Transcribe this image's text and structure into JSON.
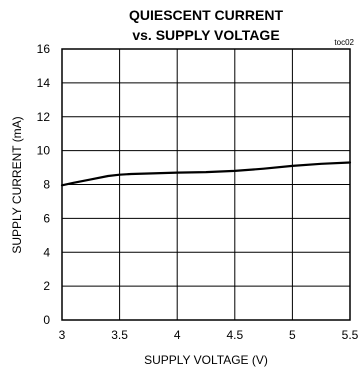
{
  "chart_data": {
    "type": "line",
    "title_lines": [
      "QUIESCENT CURRENT",
      "vs. SUPPLY VOLTAGE"
    ],
    "code": "toc02",
    "xlabel": "SUPPLY VOLTAGE (V)",
    "ylabel": "SUPPLY CURRENT (mA)",
    "xlim": [
      3,
      5.5
    ],
    "ylim": [
      0,
      16
    ],
    "x_ticks": [
      3,
      3.5,
      4,
      4.5,
      5,
      5.5
    ],
    "x_tick_labels": [
      "3",
      "3.5",
      "4",
      "4.5",
      "5",
      "5.5"
    ],
    "y_ticks": [
      0,
      2,
      4,
      6,
      8,
      10,
      12,
      14,
      16
    ],
    "y_tick_labels": [
      "0",
      "2",
      "4",
      "6",
      "8",
      "10",
      "12",
      "14",
      "16"
    ],
    "grid": true,
    "series": [
      {
        "x": [
          3.0,
          3.1,
          3.25,
          3.4,
          3.5,
          3.6,
          3.75,
          4.0,
          4.25,
          4.5,
          4.75,
          5.0,
          5.25,
          5.5
        ],
        "y": [
          7.95,
          8.1,
          8.3,
          8.5,
          8.58,
          8.62,
          8.65,
          8.7,
          8.73,
          8.8,
          8.93,
          9.1,
          9.22,
          9.3
        ]
      }
    ]
  }
}
